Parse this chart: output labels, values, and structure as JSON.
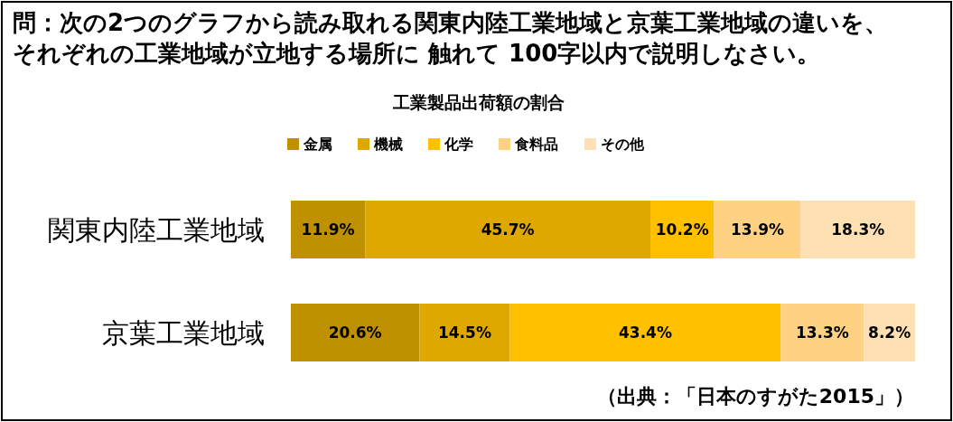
{
  "chart_data": {
    "type": "bar",
    "orientation": "horizontal",
    "stacked": true,
    "title": "工業製品出荷額の割合",
    "categories": [
      "関東内陸工業地域",
      "京葉工業地域"
    ],
    "series": [
      {
        "name": "金属",
        "color": "#bf9000",
        "values": [
          11.9,
          20.6
        ],
        "value_labels": [
          "11.9%",
          "20.6%"
        ]
      },
      {
        "name": "機械",
        "color": "#dfa800",
        "values": [
          45.7,
          14.5
        ],
        "value_labels": [
          "45.7%",
          "14.5%"
        ]
      },
      {
        "name": "化学",
        "color": "#ffc000",
        "values": [
          10.2,
          43.4
        ],
        "value_labels": [
          "10.2%",
          "43.4%"
        ]
      },
      {
        "name": "食料品",
        "color": "#ffd183",
        "values": [
          13.9,
          13.3
        ],
        "value_labels": [
          "13.9%",
          "13.3%"
        ]
      },
      {
        "name": "その他",
        "color": "#ffe0b3",
        "values": [
          18.3,
          8.2
        ],
        "value_labels": [
          "18.3%",
          "8.2%"
        ]
      }
    ],
    "legend": "top",
    "annotations": [
      "問：次の2つのグラフから読み取れる関東内陸工業地域と京葉工業地域の違いを、それぞれの工業地域が立地する場所に 触れて 100字以内で説明しなさい。",
      "（出典：「日本のすがた2015」）"
    ]
  }
}
